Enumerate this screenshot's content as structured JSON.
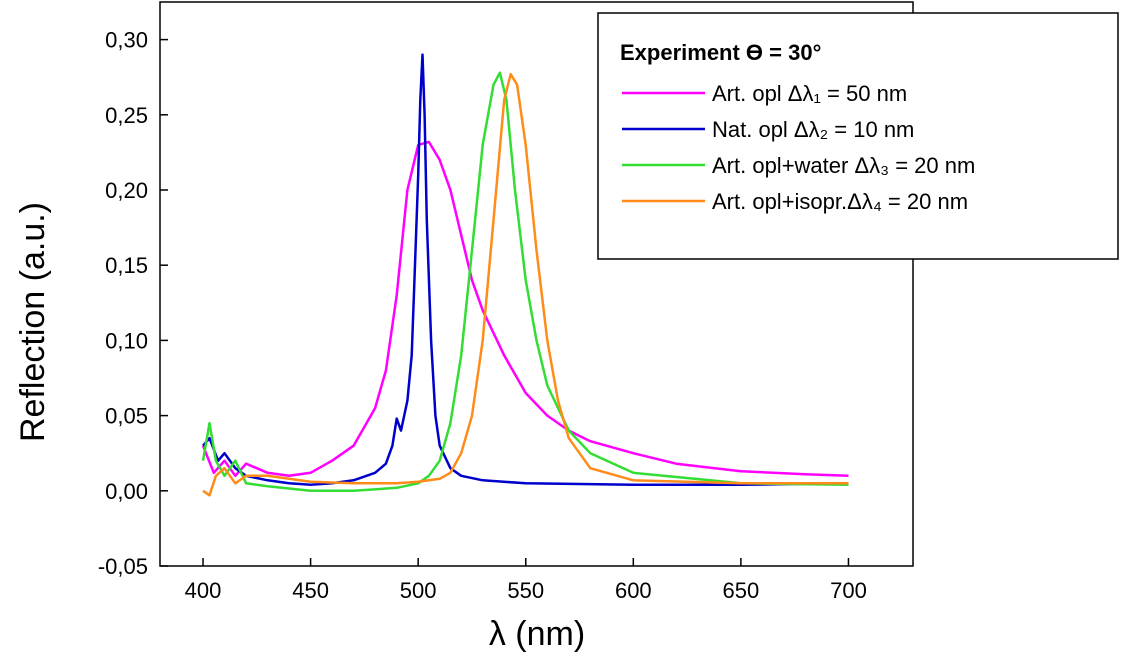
{
  "chart_data": {
    "type": "line",
    "xlabel": "λ (nm)",
    "ylabel": "Reflection (a.u.)",
    "xlim": [
      380,
      730
    ],
    "ylim": [
      -0.05,
      0.325
    ],
    "x_ticks": [
      400,
      450,
      500,
      550,
      600,
      650,
      700
    ],
    "y_ticks": [
      -0.05,
      0,
      0.05,
      0.1,
      0.15,
      0.2,
      0.25,
      0.3
    ],
    "x_tick_labels": [
      "400",
      "450",
      "500",
      "550",
      "600",
      "650",
      "700"
    ],
    "y_tick_labels": [
      "-0,05",
      "0,00",
      "0,05",
      "0,10",
      "0,15",
      "0,20",
      "0,25",
      "0,30"
    ],
    "grid": false,
    "legend_position": "top-right",
    "legend_title": "Experiment ϴ = 30°",
    "series": [
      {
        "name": "Art. opl Δλ₁ = 50 nm",
        "color": "#ff00ff",
        "x": [
          400,
          405,
          410,
          415,
          420,
          430,
          440,
          450,
          460,
          470,
          480,
          485,
          490,
          495,
          500,
          505,
          510,
          515,
          520,
          525,
          530,
          540,
          550,
          560,
          570,
          580,
          600,
          620,
          650,
          680,
          700
        ],
        "y": [
          0.03,
          0.012,
          0.02,
          0.01,
          0.018,
          0.012,
          0.01,
          0.012,
          0.02,
          0.03,
          0.055,
          0.08,
          0.13,
          0.2,
          0.23,
          0.232,
          0.22,
          0.2,
          0.17,
          0.14,
          0.12,
          0.09,
          0.065,
          0.05,
          0.04,
          0.033,
          0.025,
          0.018,
          0.013,
          0.011,
          0.01
        ]
      },
      {
        "name": "Nat. opl Δλ₂ = 10 nm",
        "color": "#0000cc",
        "x": [
          400,
          403,
          407,
          410,
          415,
          420,
          430,
          440,
          450,
          460,
          470,
          480,
          485,
          488,
          490,
          492,
          495,
          497,
          498,
          500,
          501,
          502,
          503,
          504,
          506,
          508,
          510,
          515,
          520,
          530,
          550,
          600,
          650,
          695
        ],
        "y": [
          0.03,
          0.035,
          0.02,
          0.025,
          0.015,
          0.01,
          0.007,
          0.005,
          0.004,
          0.005,
          0.007,
          0.012,
          0.018,
          0.03,
          0.048,
          0.04,
          0.06,
          0.09,
          0.13,
          0.21,
          0.26,
          0.29,
          0.25,
          0.18,
          0.1,
          0.05,
          0.03,
          0.015,
          0.01,
          0.007,
          0.005,
          0.004,
          0.004,
          0.005
        ]
      },
      {
        "name": "Art. opl+water Δλ₃ = 20 nm",
        "color": "#33dd33",
        "x": [
          400,
          403,
          406,
          410,
          415,
          420,
          430,
          450,
          470,
          490,
          500,
          505,
          510,
          515,
          520,
          525,
          530,
          535,
          538,
          541,
          545,
          550,
          555,
          560,
          570,
          580,
          600,
          650,
          700
        ],
        "y": [
          0.02,
          0.045,
          0.02,
          0.01,
          0.02,
          0.005,
          0.003,
          0.0,
          0.0,
          0.002,
          0.005,
          0.01,
          0.02,
          0.045,
          0.09,
          0.16,
          0.23,
          0.27,
          0.278,
          0.26,
          0.2,
          0.14,
          0.1,
          0.07,
          0.04,
          0.025,
          0.012,
          0.005,
          0.004
        ]
      },
      {
        "name": "Art. opl+isopr.Δλ₄ = 20 nm",
        "color": "#ff8c1a",
        "x": [
          400,
          403,
          406,
          410,
          415,
          420,
          430,
          450,
          470,
          490,
          500,
          510,
          515,
          520,
          525,
          530,
          535,
          540,
          543,
          546,
          550,
          555,
          560,
          565,
          570,
          580,
          600,
          650,
          700
        ],
        "y": [
          0.0,
          -0.003,
          0.01,
          0.015,
          0.005,
          0.01,
          0.01,
          0.006,
          0.005,
          0.005,
          0.006,
          0.008,
          0.012,
          0.025,
          0.05,
          0.1,
          0.18,
          0.26,
          0.277,
          0.27,
          0.23,
          0.16,
          0.1,
          0.06,
          0.035,
          0.015,
          0.007,
          0.005,
          0.005
        ]
      }
    ]
  }
}
